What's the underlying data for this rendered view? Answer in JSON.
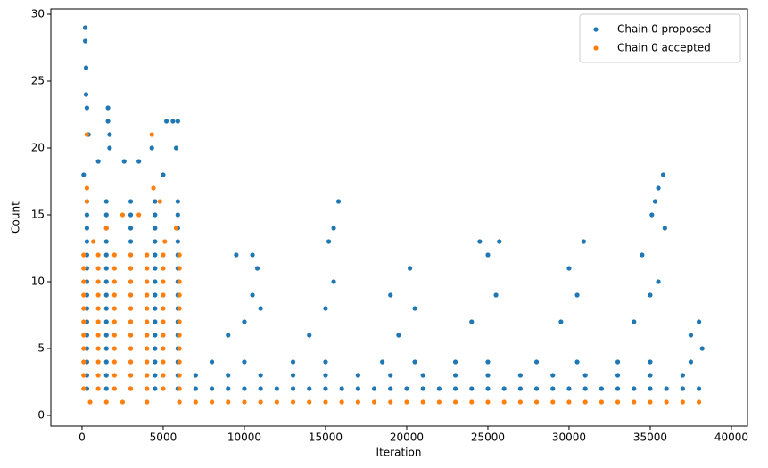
{
  "chart_data": {
    "type": "scatter",
    "x_label": "Iteration",
    "y_label": "Count",
    "xlim": [
      -1920,
      40990
    ],
    "ylim": [
      -0.8,
      30.4
    ],
    "xticks": [
      0,
      5000,
      10000,
      15000,
      20000,
      25000,
      30000,
      35000,
      40000
    ],
    "yticks": [
      0,
      5,
      10,
      15,
      20,
      25,
      30
    ],
    "legend": "upper right",
    "series": [
      {
        "name": "Chain 0 proposed",
        "color": "#1f77b4",
        "x": [
          300,
          1500,
          3000,
          4500,
          5900,
          300,
          1500,
          3000,
          4500,
          5900,
          300,
          1500,
          3000,
          4500,
          5900,
          300,
          1500,
          3000,
          4500,
          5900,
          300,
          1500,
          3000,
          4500,
          5900,
          300,
          1500,
          3000,
          4500,
          5900,
          300,
          1500,
          3000,
          4500,
          5900,
          300,
          1500,
          3000,
          4500,
          5900,
          300,
          1500,
          3000,
          4500,
          5900,
          300,
          1500,
          3000,
          4500,
          5900,
          300,
          1500,
          3000,
          4500,
          5900,
          300,
          1500,
          3000,
          4500,
          5900,
          300,
          1500,
          3000,
          4500,
          5900,
          300,
          1500,
          3000,
          4500,
          5900,
          300,
          1500,
          3000,
          4500,
          5900,
          200,
          200,
          250,
          250,
          300,
          400,
          1600,
          1600,
          1700,
          1700,
          5200,
          5600,
          5900,
          4300,
          5800,
          3500,
          2600,
          1000,
          100,
          5000,
          7000,
          8000,
          9000,
          10000,
          11000,
          12000,
          13000,
          14000,
          15000,
          16000,
          17000,
          18000,
          19000,
          20000,
          21000,
          22000,
          23000,
          24000,
          25000,
          26000,
          27000,
          28000,
          29000,
          30000,
          31000,
          32000,
          33000,
          34000,
          35000,
          36000,
          37000,
          38000,
          7000,
          9000,
          11000,
          13000,
          15000,
          17000,
          19000,
          21000,
          23000,
          25000,
          27000,
          29000,
          31000,
          33000,
          35000,
          37000,
          8000,
          10000,
          13000,
          15000,
          18500,
          20500,
          23000,
          25000,
          28000,
          30500,
          33000,
          35000,
          37500,
          9000,
          10000,
          10500,
          11000,
          14000,
          15000,
          15500,
          19500,
          20500,
          24000,
          25500,
          29500,
          30500,
          34000,
          35000,
          35500,
          9500,
          10500,
          10800,
          15500,
          15800,
          15200,
          20200,
          19000,
          24500,
          25700,
          25000,
          30900,
          30000,
          35800,
          35500,
          35300,
          35100,
          35900,
          34500,
          38000,
          37500,
          38200
        ],
        "values": [
          2,
          2,
          2,
          2,
          2,
          3,
          3,
          3,
          3,
          3,
          4,
          4,
          4,
          4,
          4,
          5,
          5,
          5,
          5,
          5,
          6,
          6,
          6,
          6,
          6,
          7,
          7,
          7,
          7,
          7,
          8,
          8,
          8,
          8,
          8,
          9,
          9,
          9,
          9,
          9,
          10,
          10,
          10,
          10,
          10,
          11,
          11,
          11,
          11,
          11,
          12,
          12,
          12,
          12,
          12,
          13,
          13,
          13,
          13,
          13,
          14,
          14,
          14,
          14,
          14,
          15,
          15,
          15,
          15,
          15,
          16,
          16,
          16,
          16,
          16,
          29,
          28,
          26,
          24,
          23,
          21,
          23,
          22,
          21,
          20,
          22,
          22,
          22,
          20,
          20,
          19,
          19,
          19,
          18,
          18,
          2,
          2,
          2,
          2,
          2,
          2,
          2,
          2,
          2,
          2,
          2,
          2,
          2,
          2,
          2,
          2,
          2,
          2,
          2,
          2,
          2,
          2,
          2,
          2,
          2,
          2,
          2,
          2,
          2,
          2,
          2,
          2,
          3,
          3,
          3,
          3,
          3,
          3,
          3,
          3,
          3,
          3,
          3,
          3,
          3,
          3,
          3,
          3,
          4,
          4,
          4,
          4,
          4,
          4,
          4,
          4,
          4,
          4,
          4,
          4,
          4,
          6,
          7,
          9,
          8,
          6,
          8,
          10,
          6,
          8,
          7,
          9,
          7,
          9,
          7,
          9,
          10,
          12,
          12,
          11,
          14,
          16,
          13,
          11,
          9,
          13,
          13,
          12,
          13,
          11,
          18,
          17,
          16,
          15,
          14,
          12,
          7,
          6,
          5
        ]
      },
      {
        "name": "Chain 0 accepted",
        "color": "#ff7f0e",
        "x": [
          100,
          1000,
          2000,
          3000,
          4000,
          5000,
          6000,
          100,
          1000,
          2000,
          3000,
          4000,
          5000,
          6000,
          100,
          1000,
          2000,
          3000,
          4000,
          5000,
          6000,
          100,
          1000,
          2000,
          3000,
          4000,
          5000,
          6000,
          100,
          1000,
          2000,
          3000,
          4000,
          5000,
          6000,
          100,
          1000,
          2000,
          3000,
          4000,
          5000,
          6000,
          100,
          1000,
          2000,
          3000,
          4000,
          5000,
          6000,
          100,
          1000,
          2000,
          3000,
          4000,
          5000,
          6000,
          100,
          1000,
          2000,
          3000,
          4000,
          5000,
          6000,
          100,
          1000,
          2000,
          3000,
          4000,
          5000,
          6000,
          100,
          1000,
          2000,
          3000,
          4000,
          5000,
          6000,
          500,
          1500,
          2500,
          4000,
          700,
          1500,
          2500,
          3500,
          300,
          4800,
          300,
          4400,
          300,
          4300,
          5100,
          5800,
          6000,
          7000,
          8000,
          9000,
          10000,
          11000,
          12000,
          13000,
          14000,
          15000,
          16000,
          17000,
          18000,
          19000,
          20000,
          21000,
          22000,
          23000,
          24000,
          25000,
          26000,
          27000,
          28000,
          29000,
          30000,
          31000,
          32000,
          33000,
          34000,
          35000,
          36000,
          37000,
          38000
        ],
        "values": [
          2,
          2,
          2,
          2,
          2,
          2,
          2,
          3,
          3,
          3,
          3,
          3,
          3,
          3,
          4,
          4,
          4,
          4,
          4,
          4,
          4,
          5,
          5,
          5,
          5,
          5,
          5,
          5,
          6,
          6,
          6,
          6,
          6,
          6,
          6,
          7,
          7,
          7,
          7,
          7,
          7,
          7,
          8,
          8,
          8,
          8,
          8,
          8,
          8,
          9,
          9,
          9,
          9,
          9,
          9,
          9,
          10,
          10,
          10,
          10,
          10,
          10,
          10,
          11,
          11,
          11,
          11,
          11,
          11,
          11,
          12,
          12,
          12,
          12,
          12,
          12,
          12,
          1,
          1,
          1,
          1,
          13,
          14,
          15,
          15,
          16,
          16,
          17,
          17,
          21,
          21,
          13,
          14,
          1,
          1,
          1,
          1,
          1,
          1,
          1,
          1,
          1,
          1,
          1,
          1,
          1,
          1,
          1,
          1,
          1,
          1,
          1,
          1,
          1,
          1,
          1,
          1,
          1,
          1,
          1,
          1,
          1,
          1,
          1,
          1,
          1
        ]
      }
    ]
  }
}
